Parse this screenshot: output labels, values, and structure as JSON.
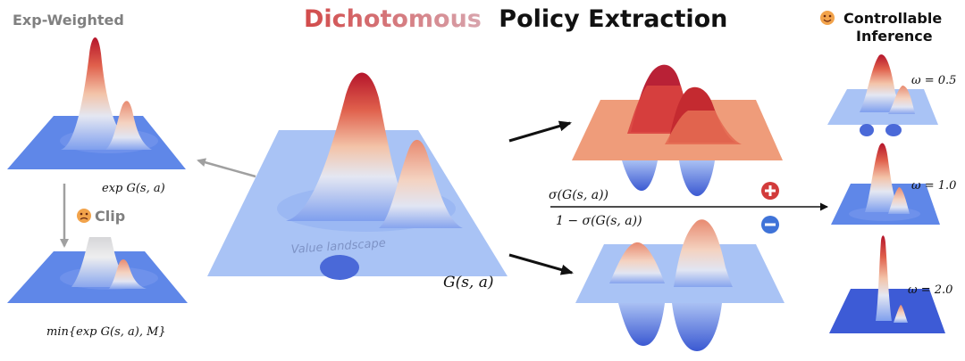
{
  "title": {
    "part1": "Dichotomous",
    "part2": "Policy Extraction"
  },
  "left": {
    "heading": "Exp-Weighted",
    "exp_label": "exp G(s, a)",
    "clip_label": "Clip",
    "clip_icon": "angry-face-icon",
    "min_label": "min{exp G(s, a), M}"
  },
  "center": {
    "watermark": "Value landscape",
    "g_label": "G(s, a)"
  },
  "middle_right": {
    "numerator": "σ(G(s, a))",
    "denominator": "1 − σ(G(s, a))",
    "plus_icon": "plus-circle-icon",
    "minus_icon": "minus-circle-icon"
  },
  "right": {
    "heading_line1": "Controllable",
    "heading_line2": "Inference",
    "heading_icon": "smiling-face-icon",
    "omegas": [
      "ω = 0.5",
      "ω = 1.0",
      "ω = 2.0"
    ]
  },
  "colors": {
    "title_red": "#d24a4a",
    "title_blue": "#6f8fe8",
    "plane_light": "#a9c3f5",
    "plane_blue": "#5f87e8",
    "plane_dark": "#3d5bd6",
    "plane_salmon": "#ef9c7a",
    "arrow_gray": "#a0a0a0",
    "plus_red": "#d23b3b",
    "minus_blue": "#3f73d8"
  }
}
